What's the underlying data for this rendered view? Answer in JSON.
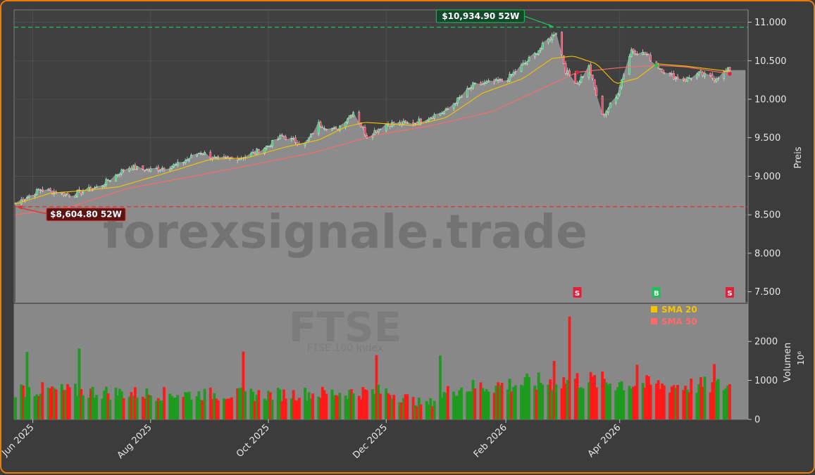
{
  "chart_data": {
    "type": "candlestick",
    "watermark": "forexsignale.trade",
    "symbol": "FTSE",
    "symbol_subtitle": "FTSE 100 Index",
    "price_axis_label": "Preis",
    "volume_axis_label": "Volumen",
    "volume_axis_exponent": "10⁶",
    "price_ticks": [
      "7.500",
      "8.000",
      "8.500",
      "9.000",
      "9.500",
      "10.000",
      "10.500",
      "11.000"
    ],
    "price_tick_values": [
      7500,
      8000,
      8500,
      9000,
      9500,
      10000,
      10500,
      11000
    ],
    "price_ylim": [
      7360,
      11160
    ],
    "volume_ticks": [
      "0",
      "1000",
      "2000"
    ],
    "volume_tick_values": [
      0,
      1000,
      2000
    ],
    "volume_ylim": [
      0,
      2960
    ],
    "date_range": [
      "2025-05-23",
      "2026-05-28"
    ],
    "x_tick_labels": [
      "Jun 2025",
      "Aug 2025",
      "Oct 2025",
      "Dec 2025",
      "Feb 2026",
      "Apr 2026"
    ],
    "x_tick_dates": [
      "2025-06-01",
      "2025-08-01",
      "2025-10-01",
      "2025-12-01",
      "2026-02-01",
      "2026-04-01"
    ],
    "annotations": {
      "high_52w": {
        "label": "$10,934.90 52W",
        "value": 10934.9,
        "date": "2026-02-27",
        "color": "#1ec15a"
      },
      "low_52w": {
        "label": "$8,604.80 52W",
        "value": 8604.8,
        "date": "2025-05-23",
        "color": "#e03030"
      }
    },
    "signals": [
      {
        "label": "S",
        "date": "2026-03-10",
        "value": 10350,
        "color": "#e0203c"
      },
      {
        "label": "B",
        "date": "2026-04-20",
        "value": 10440,
        "color": "#1ec15a"
      },
      {
        "label": "S",
        "date": "2026-05-28",
        "value": 10330,
        "color": "#e0203c"
      }
    ],
    "legend": [
      {
        "name": "SMA 20",
        "color": "#f5c400"
      },
      {
        "name": "SMA 50",
        "color": "#ff6b6b"
      }
    ],
    "price_anchors": [
      [
        "2025-05-23",
        8650
      ],
      [
        "2025-06-05",
        8830
      ],
      [
        "2025-06-20",
        8760
      ],
      [
        "2025-07-05",
        8860
      ],
      [
        "2025-07-20",
        9120
      ],
      [
        "2025-08-01",
        9080
      ],
      [
        "2025-08-15",
        9150
      ],
      [
        "2025-08-27",
        9320
      ],
      [
        "2025-09-05",
        9210
      ],
      [
        "2025-09-20",
        9260
      ],
      [
        "2025-10-01",
        9400
      ],
      [
        "2025-10-08",
        9520
      ],
      [
        "2025-10-20",
        9410
      ],
      [
        "2025-10-27",
        9680
      ],
      [
        "2025-11-05",
        9600
      ],
      [
        "2025-11-14",
        9840
      ],
      [
        "2025-11-21",
        9520
      ],
      [
        "2025-12-01",
        9680
      ],
      [
        "2025-12-15",
        9690
      ],
      [
        "2026-01-01",
        9850
      ],
      [
        "2026-01-15",
        10180
      ],
      [
        "2026-02-01",
        10250
      ],
      [
        "2026-02-15",
        10560
      ],
      [
        "2026-02-27",
        10880
      ],
      [
        "2026-03-04",
        10370
      ],
      [
        "2026-03-10",
        10210
      ],
      [
        "2026-03-16",
        10420
      ],
      [
        "2026-03-23",
        9780
      ],
      [
        "2026-03-30",
        10020
      ],
      [
        "2026-04-07",
        10640
      ],
      [
        "2026-04-15",
        10580
      ],
      [
        "2026-04-20",
        10440
      ],
      [
        "2026-04-28",
        10300
      ],
      [
        "2026-05-05",
        10260
      ],
      [
        "2026-05-12",
        10330
      ],
      [
        "2026-05-20",
        10270
      ],
      [
        "2026-05-28",
        10390
      ]
    ],
    "sma20_anchors": [
      [
        "2025-05-23",
        8640
      ],
      [
        "2025-06-10",
        8780
      ],
      [
        "2025-06-25",
        8810
      ],
      [
        "2025-07-15",
        8860
      ],
      [
        "2025-08-10",
        9050
      ],
      [
        "2025-09-01",
        9220
      ],
      [
        "2025-09-20",
        9240
      ],
      [
        "2025-10-10",
        9380
      ],
      [
        "2025-10-27",
        9470
      ],
      [
        "2025-11-10",
        9640
      ],
      [
        "2025-11-20",
        9700
      ],
      [
        "2025-12-15",
        9660
      ],
      [
        "2026-01-01",
        9760
      ],
      [
        "2026-01-20",
        10080
      ],
      [
        "2026-02-10",
        10270
      ],
      [
        "2026-02-25",
        10530
      ],
      [
        "2026-03-08",
        10560
      ],
      [
        "2026-03-20",
        10460
      ],
      [
        "2026-03-30",
        10200
      ],
      [
        "2026-04-10",
        10270
      ],
      [
        "2026-04-20",
        10460
      ],
      [
        "2026-05-05",
        10430
      ],
      [
        "2026-05-28",
        10360
      ]
    ],
    "sma50_anchors": [
      [
        "2025-05-23",
        8500
      ],
      [
        "2025-06-20",
        8600
      ],
      [
        "2025-07-20",
        8840
      ],
      [
        "2025-08-25",
        9010
      ],
      [
        "2025-09-25",
        9160
      ],
      [
        "2025-10-25",
        9310
      ],
      [
        "2025-11-25",
        9530
      ],
      [
        "2025-12-25",
        9660
      ],
      [
        "2026-01-25",
        9840
      ],
      [
        "2026-02-25",
        10200
      ],
      [
        "2026-03-10",
        10350
      ],
      [
        "2026-04-01",
        10410
      ],
      [
        "2026-04-20",
        10440
      ],
      [
        "2026-05-05",
        10420
      ],
      [
        "2026-05-28",
        10330
      ]
    ],
    "volume_level": [
      [
        "2025-05-23",
        780
      ],
      [
        "2025-08-01",
        660
      ],
      [
        "2025-10-01",
        640
      ],
      [
        "2025-12-01",
        720
      ],
      [
        "2025-12-22",
        380
      ],
      [
        "2026-01-05",
        800
      ],
      [
        "2026-02-15",
        940
      ],
      [
        "2026-03-10",
        1020
      ],
      [
        "2026-04-20",
        880
      ],
      [
        "2026-05-28",
        860
      ]
    ],
    "volume_spikes": [
      [
        "2025-05-29",
        1730
      ],
      [
        "2025-06-25",
        1820
      ],
      [
        "2025-09-18",
        1740
      ],
      [
        "2025-11-26",
        1650
      ],
      [
        "2025-12-29",
        1640
      ],
      [
        "2026-02-26",
        1500
      ],
      [
        "2026-03-06",
        2640
      ],
      [
        "2026-03-07",
        1650
      ],
      [
        "2026-04-10",
        1400
      ],
      [
        "2026-05-20",
        1420
      ]
    ]
  }
}
